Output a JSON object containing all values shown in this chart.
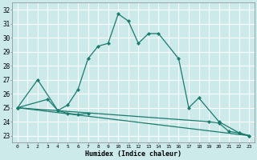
{
  "xlabel": "Humidex (Indice chaleur)",
  "bg_color": "#cceaea",
  "grid_color": "#ffffff",
  "line_color": "#1a7a6e",
  "xlim": [
    -0.5,
    23.5
  ],
  "ylim": [
    22.5,
    32.5
  ],
  "xticks": [
    0,
    1,
    2,
    3,
    4,
    5,
    6,
    7,
    8,
    9,
    10,
    11,
    12,
    13,
    14,
    15,
    16,
    17,
    18,
    19,
    20,
    21,
    22,
    23
  ],
  "yticks": [
    23,
    24,
    25,
    26,
    27,
    28,
    29,
    30,
    31,
    32
  ],
  "series1_x": [
    0,
    2,
    4,
    5,
    6,
    7,
    8,
    9,
    10,
    11,
    12,
    13,
    14,
    16,
    17,
    18,
    20,
    22,
    23
  ],
  "series1_y": [
    25.0,
    27.0,
    24.8,
    25.2,
    26.3,
    28.5,
    29.4,
    29.6,
    31.7,
    31.2,
    29.6,
    30.3,
    30.3,
    28.5,
    25.0,
    25.7,
    24.0,
    23.2,
    23.0
  ],
  "series2_x": [
    0,
    3,
    4,
    5,
    6,
    7
  ],
  "series2_y": [
    25.0,
    25.6,
    24.8,
    24.6,
    24.5,
    24.6
  ],
  "series3_x": [
    0,
    19,
    20,
    21,
    22,
    23
  ],
  "series3_y": [
    25.0,
    24.0,
    23.9,
    23.3,
    23.2,
    23.0
  ],
  "trend_x": [
    0,
    23
  ],
  "trend_y": [
    25.0,
    23.0
  ]
}
